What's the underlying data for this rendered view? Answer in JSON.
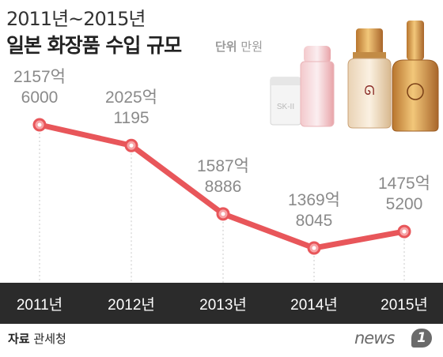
{
  "header": {
    "title": "2011년~2015년",
    "subtitle": "일본 화장품 수입 규모",
    "unit_label": "단위",
    "unit_value": "만원"
  },
  "chart_data": {
    "type": "line",
    "title": "일본 화장품 수입 규모",
    "unit": "만원",
    "categories": [
      "2011년",
      "2012년",
      "2013년",
      "2014년",
      "2015년"
    ],
    "values": [
      21576000,
      20251195,
      15878886,
      13698045,
      14755200
    ],
    "data_labels": [
      [
        "2157억",
        "6000"
      ],
      [
        "2025억",
        "1195"
      ],
      [
        "1587억",
        "8886"
      ],
      [
        "1369억",
        "8045"
      ],
      [
        "1475억",
        "5200"
      ]
    ],
    "line_color": "#e8565a",
    "marker_fill": "#f7a3a6",
    "axis_band_color": "#2b2b2b",
    "grid": false,
    "legend": "none"
  },
  "footer": {
    "source_label": "자료",
    "source_value": "관세청",
    "logo_text": "news",
    "logo_badge": "1"
  },
  "decor": {
    "product_label": "SK-II"
  }
}
